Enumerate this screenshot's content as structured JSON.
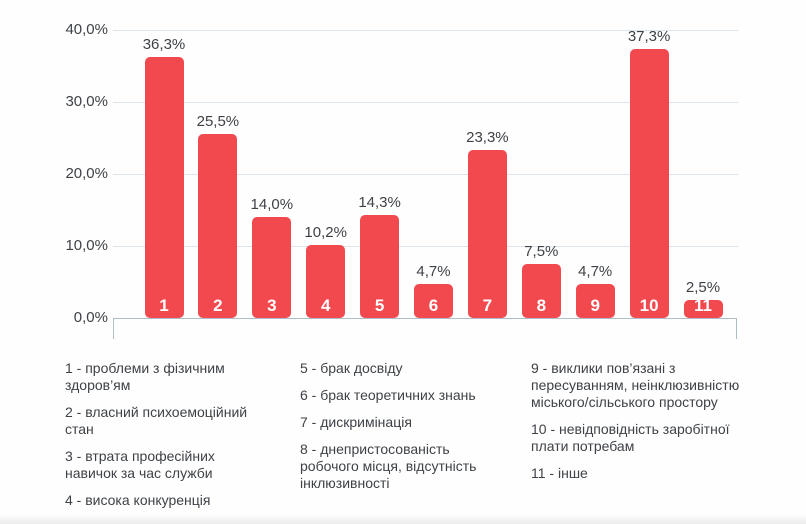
{
  "chart_data": {
    "type": "bar",
    "title": "",
    "xlabel": "",
    "ylabel": "",
    "categories": [
      "1",
      "2",
      "3",
      "4",
      "5",
      "6",
      "7",
      "8",
      "9",
      "10",
      "11"
    ],
    "values": [
      36.3,
      25.5,
      14.0,
      10.2,
      14.3,
      4.7,
      23.3,
      7.5,
      4.7,
      37.3,
      2.5
    ],
    "value_labels": [
      "36,3%",
      "25,5%",
      "14,0%",
      "10,2%",
      "14,3%",
      "4,7%",
      "23,3%",
      "7,5%",
      "4,7%",
      "37,3%",
      "2,5%"
    ],
    "ylim": [
      0,
      40
    ],
    "yticks": [
      {
        "value": 0,
        "label": "0,0%"
      },
      {
        "value": 10,
        "label": "10,0%"
      },
      {
        "value": 20,
        "label": "20,0%"
      },
      {
        "value": 30,
        "label": "30,0%"
      },
      {
        "value": 40,
        "label": "40,0%"
      }
    ],
    "grid": true,
    "legend_position": "bottom",
    "legend_columns": [
      {
        "items": [
          "1 - проблеми з фізичним\nздоров’ям",
          "2 - власний психоемоційний\nстан",
          "3 - втрата професійних\nнавичок за час служби",
          "4 - висока конкуренція"
        ]
      },
      {
        "items": [
          "5 - брак досвіду",
          "6 - брак теоретичних знань",
          "7 - дискримінація",
          "8 - днепристосованість\nробочого місця, відсутність\nінклюзивності"
        ]
      },
      {
        "items": [
          "9 - виклики пов’язані з\nпересуванням, неінклюзивністю\nміського/сільського простору",
          "10 - невідповідність заробітної\nплати потребам",
          "11 - інше"
        ]
      }
    ]
  },
  "colors": {
    "bar": "#f2494f",
    "bar_number": "#ffffff",
    "grid": "#dce4ea",
    "axis": "#abbec9",
    "text": "#3e4247",
    "background": "#fefefe"
  }
}
